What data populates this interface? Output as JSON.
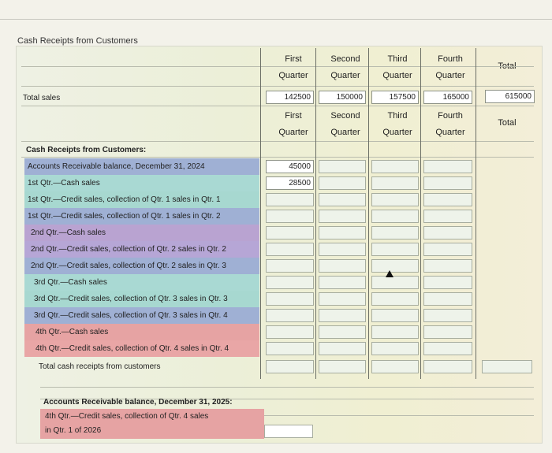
{
  "title": "Cash Receipts from Customers",
  "headers_top": [
    {
      "l1": "First",
      "l2": "Quarter"
    },
    {
      "l1": "Second",
      "l2": "Quarter"
    },
    {
      "l1": "Third",
      "l2": "Quarter"
    },
    {
      "l1": "Fourth",
      "l2": "Quarter"
    },
    {
      "l1": "",
      "l2": "Total"
    }
  ],
  "total_sales": {
    "label": "Total sales",
    "values": [
      "142500",
      "150000",
      "157500",
      "165000",
      "615000"
    ]
  },
  "headers_mid": [
    {
      "l1": "First",
      "l2": "Quarter"
    },
    {
      "l1": "Second",
      "l2": "Quarter"
    },
    {
      "l1": "Third",
      "l2": "Quarter"
    },
    {
      "l1": "Fourth",
      "l2": "Quarter"
    },
    {
      "l1": "",
      "l2": "Total"
    }
  ],
  "section_label": "Cash Receipts from Customers:",
  "rows": [
    {
      "label": "Accounts Receivable balance, December 31, 2024",
      "q1": "45000"
    },
    {
      "label": "1st Qtr.—Cash sales",
      "q1": "28500"
    },
    {
      "label": "1st Qtr.—Credit sales, collection of Qtr. 1 sales in Qtr. 1",
      "q1": ""
    },
    {
      "label": "1st Qtr.—Credit sales, collection of Qtr. 1 sales in Qtr. 2",
      "q1": ""
    },
    {
      "label": "2nd Qtr.—Cash sales",
      "q1": ""
    },
    {
      "label": "2nd Qtr.—Credit sales, collection of Qtr. 2 sales in Qtr. 2",
      "q1": ""
    },
    {
      "label": "2nd Qtr.—Credit sales, collection of Qtr. 2 sales in Qtr. 3",
      "q1": ""
    },
    {
      "label": "3rd Qtr.—Cash sales",
      "q1": ""
    },
    {
      "label": "3rd Qtr.—Credit sales, collection of Qtr. 3 sales in Qtr. 3",
      "q1": ""
    },
    {
      "label": "3rd Qtr.—Credit sales, collection of Qtr. 3 sales in Qtr. 4",
      "q1": ""
    },
    {
      "label": "4th Qtr.—Cash sales",
      "q1": ""
    },
    {
      "label": "4th Qtr.—Credit sales, collection of Qtr. 4 sales in Qtr. 4",
      "q1": ""
    },
    {
      "label": "Total cash receipts from customers",
      "q1": ""
    }
  ],
  "ar_end": {
    "heading": "Accounts Receivable balance, December 31, 2025:",
    "line1": "4th Qtr.—Credit sales, collection of Qtr. 4 sales",
    "line2": "in Qtr. 1 of 2026"
  },
  "colors": {
    "band_blue": "#9fb0d4",
    "band_teal": "#a9d9d3",
    "band_purple": "#b9a3d1",
    "band_pink": "#e6a3a3"
  }
}
